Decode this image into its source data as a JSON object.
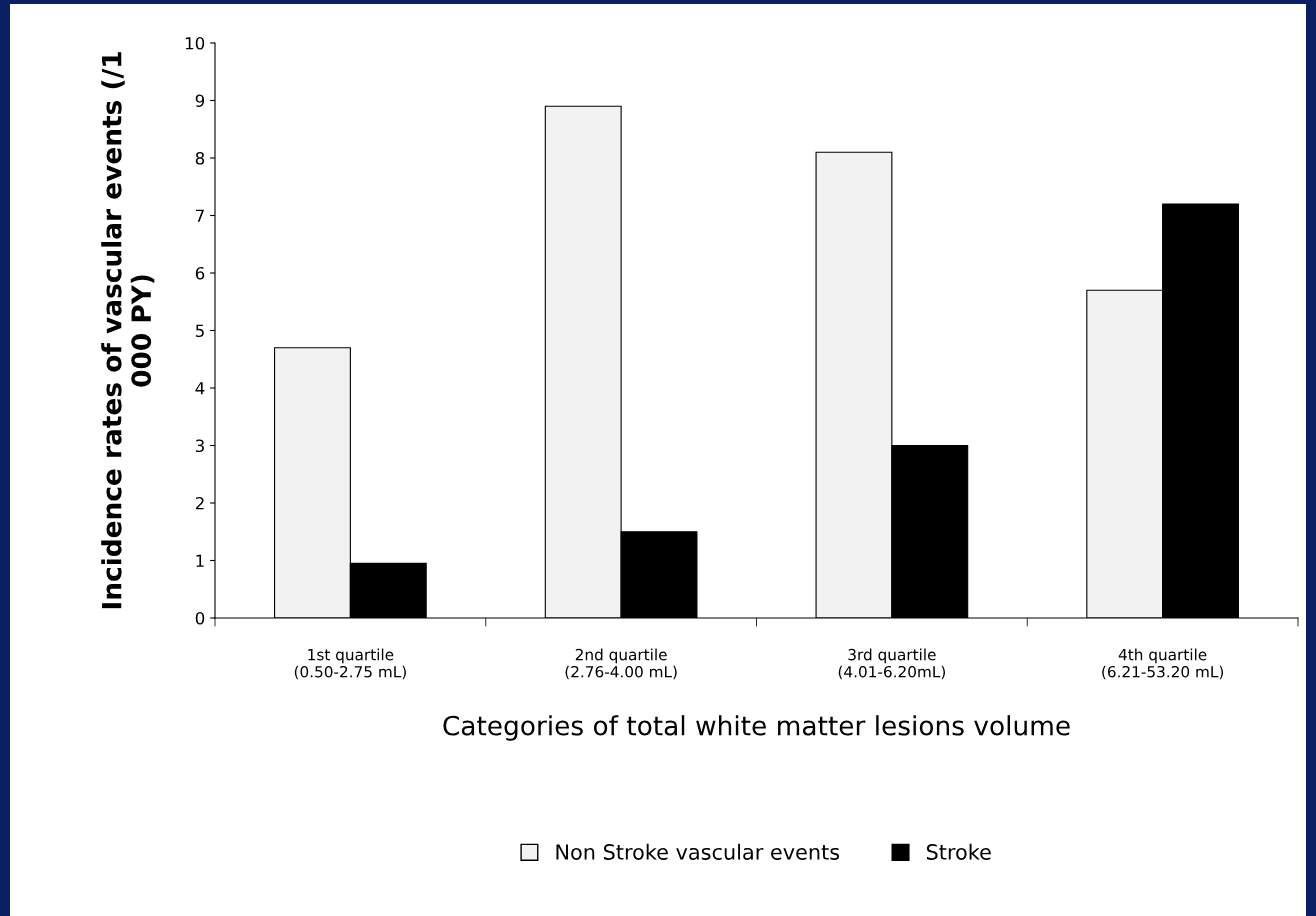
{
  "chart_data": {
    "type": "bar",
    "xlabel": "Categories of total white matter lesions volume",
    "ylabel": "Incidence rates of vascular events (/1\n000 PY)",
    "categories": [
      "1st quartile\n(0.50-2.75 mL)",
      "2nd quartile\n(2.76-4.00 mL)",
      "3rd quartile\n(4.01-6.20mL)",
      "4th quartile\n(6.21-53.20 mL)"
    ],
    "series": [
      {
        "name": "Non Stroke vascular events",
        "color": "#f2f2f2",
        "values": [
          4.7,
          8.9,
          8.1,
          5.7
        ]
      },
      {
        "name": "Stroke",
        "color": "#000000",
        "values": [
          0.95,
          1.5,
          3.0,
          7.2
        ]
      }
    ],
    "ylim": [
      0,
      10
    ],
    "yticks": [
      0,
      1,
      2,
      3,
      4,
      5,
      6,
      7,
      8,
      9,
      10
    ],
    "grid": false,
    "legend": "bottom"
  }
}
